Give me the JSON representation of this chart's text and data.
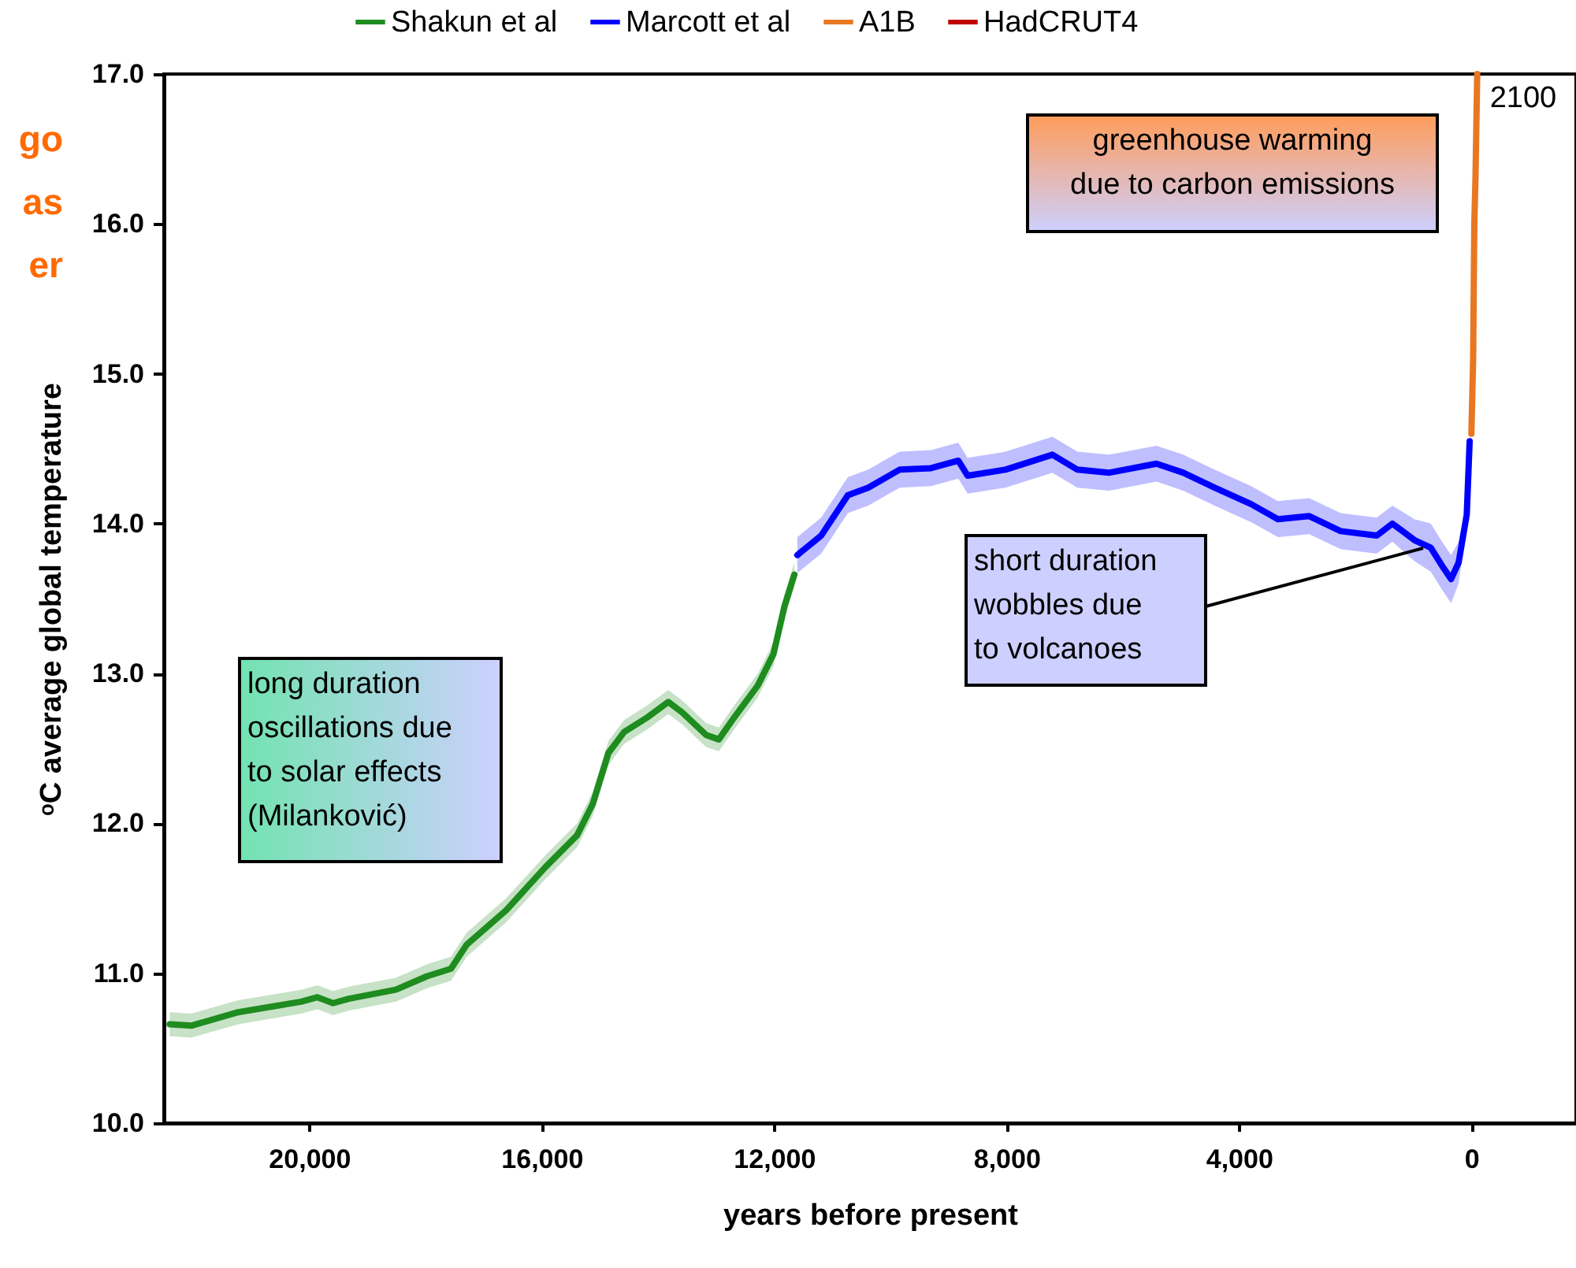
{
  "chart_data": {
    "type": "line",
    "xlabel": "years before present",
    "ylabel": "ᵒC average global temperature",
    "xlim": [
      22500,
      -1800
    ],
    "ylim": [
      10,
      17
    ],
    "xticks": [
      {
        "value": 20000,
        "label": "20,000"
      },
      {
        "value": 16000,
        "label": "16,000"
      },
      {
        "value": 12000,
        "label": "12,000"
      },
      {
        "value": 8000,
        "label": "8,000"
      },
      {
        "value": 4000,
        "label": "4,000"
      },
      0
    ],
    "yticks": [
      {
        "value": 10,
        "label": "10.0"
      },
      {
        "value": 11,
        "label": "11.0"
      },
      {
        "value": 12,
        "label": "12.0"
      },
      {
        "value": 13,
        "label": "13.0"
      },
      {
        "value": 14,
        "label": "14.0"
      },
      {
        "value": 15,
        "label": "15.0"
      },
      {
        "value": 16,
        "label": "16.0"
      },
      {
        "value": 17,
        "label": "17.0"
      }
    ],
    "legend": "top",
    "grid": false,
    "series": [
      {
        "name": "Shakun et al",
        "color": "#1e8c1e",
        "x": [
          22400,
          22030,
          21220,
          20140,
          19860,
          19590,
          19320,
          18510,
          17970,
          17560,
          17290,
          16610,
          15930,
          15390,
          15120,
          14850,
          14580,
          14170,
          13820,
          13580,
          13170,
          12950,
          12680,
          12280,
          12010,
          11820,
          11650
        ],
        "values": [
          10.66,
          10.65,
          10.74,
          10.81,
          10.84,
          10.8,
          10.83,
          10.89,
          10.98,
          11.03,
          11.19,
          11.42,
          11.71,
          11.92,
          12.13,
          12.47,
          12.61,
          12.71,
          12.81,
          12.74,
          12.59,
          12.56,
          12.71,
          12.92,
          13.13,
          13.45,
          13.66
        ],
        "lower": [
          10.58,
          10.57,
          10.66,
          10.73,
          10.76,
          10.72,
          10.75,
          10.81,
          10.9,
          10.95,
          11.11,
          11.34,
          11.63,
          11.84,
          12.05,
          12.39,
          12.53,
          12.63,
          12.73,
          12.66,
          12.51,
          12.48,
          12.63,
          12.84,
          13.05,
          13.37,
          13.58
        ],
        "upper": [
          10.74,
          10.73,
          10.82,
          10.89,
          10.92,
          10.88,
          10.91,
          10.97,
          11.06,
          11.11,
          11.27,
          11.5,
          11.79,
          12.0,
          12.21,
          12.55,
          12.69,
          12.79,
          12.89,
          12.82,
          12.67,
          12.64,
          12.79,
          13.0,
          13.21,
          13.53,
          13.74
        ]
      },
      {
        "name": "Marcott et al",
        "color": "#0000ff",
        "x": [
          11600,
          11190,
          10730,
          10380,
          9840,
          9300,
          8830,
          8670,
          8020,
          7210,
          6780,
          6230,
          5420,
          4960,
          4420,
          3790,
          3330,
          2790,
          2250,
          1630,
          1360,
          980,
          700,
          490,
          350,
          220,
          80,
          30
        ],
        "values": [
          13.79,
          13.92,
          14.19,
          14.24,
          14.36,
          14.37,
          14.42,
          14.32,
          14.36,
          14.46,
          14.36,
          14.34,
          14.4,
          14.34,
          14.24,
          14.13,
          14.03,
          14.05,
          13.95,
          13.92,
          14.0,
          13.89,
          13.84,
          13.71,
          13.63,
          13.74,
          14.06,
          14.55
        ],
        "lower": [
          13.67,
          13.8,
          14.07,
          14.12,
          14.24,
          14.25,
          14.3,
          14.2,
          14.24,
          14.34,
          14.24,
          14.22,
          14.28,
          14.22,
          14.12,
          14.01,
          13.91,
          13.93,
          13.83,
          13.8,
          13.88,
          13.75,
          13.68,
          13.55,
          13.47,
          13.6,
          13.98,
          14.5
        ],
        "upper": [
          13.91,
          14.04,
          14.31,
          14.36,
          14.48,
          14.49,
          14.54,
          14.44,
          14.48,
          14.58,
          14.48,
          14.46,
          14.52,
          14.46,
          14.36,
          14.25,
          14.15,
          14.17,
          14.07,
          14.04,
          14.12,
          14.03,
          14.0,
          13.87,
          13.79,
          13.88,
          14.14,
          14.6
        ]
      },
      {
        "name": "A1B",
        "color": "#e87722",
        "x": [
          0,
          -30,
          -50,
          -70,
          -100
        ],
        "values": [
          14.6,
          15.1,
          16.0,
          16.3,
          17.0
        ]
      },
      {
        "name": "HadCRUT4",
        "color": "#c00000"
      }
    ],
    "annotations": [
      "go\nas\ner",
      "greenhouse warming\ndue to carbon emissions",
      "long duration\noscillations due\nto solar effects\n(Milanković)",
      "short duration\nwobbles due\nto volcanoes",
      {
        "text": "2100",
        "x": -100,
        "y": 17.0
      }
    ]
  }
}
